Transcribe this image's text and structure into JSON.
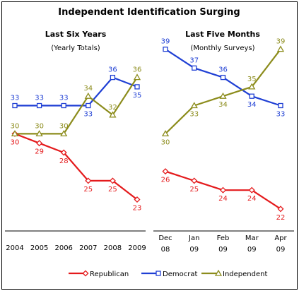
{
  "title": "Independent Identification Surging",
  "chart_data": [
    {
      "type": "line",
      "title": "Last Six Years",
      "subtitle": "(Yearly Totals)",
      "categories": [
        "2004",
        "2005",
        "2006",
        "2007",
        "2008",
        "2009"
      ],
      "ylim": [
        20,
        40
      ],
      "grid": false,
      "series": [
        {
          "name": "Republican",
          "color": "#e41a1c",
          "marker": "diamond",
          "values": [
            30,
            29,
            28,
            25,
            25,
            23
          ],
          "label_pos": [
            "below",
            "below",
            "below",
            "below",
            "below",
            "below"
          ]
        },
        {
          "name": "Democrat",
          "color": "#1f3fd4",
          "marker": "square",
          "values": [
            33,
            33,
            33,
            33,
            36,
            35
          ],
          "label_pos": [
            "above",
            "above",
            "above",
            "below",
            "above",
            "below"
          ]
        },
        {
          "name": "Independent",
          "color": "#8c8c1c",
          "marker": "triangle",
          "values": [
            30,
            30,
            30,
            34,
            32,
            36
          ],
          "label_pos": [
            "above",
            "above",
            "above",
            "above",
            "above",
            "above"
          ]
        }
      ]
    },
    {
      "type": "line",
      "title": "Last Five Months",
      "subtitle": "(Monthly Surveys)",
      "categories": [
        "Dec\n08",
        "Jan\n09",
        "Feb\n09",
        "Mar\n09",
        "Apr\n09"
      ],
      "ylim": [
        20,
        40
      ],
      "grid": false,
      "series": [
        {
          "name": "Republican",
          "color": "#e41a1c",
          "marker": "diamond",
          "values": [
            26,
            25,
            24,
            24,
            22
          ],
          "label_pos": [
            "below",
            "below",
            "below",
            "below",
            "below"
          ]
        },
        {
          "name": "Democrat",
          "color": "#1f3fd4",
          "marker": "square",
          "values": [
            39,
            37,
            36,
            34,
            33
          ],
          "label_pos": [
            "above",
            "above",
            "above",
            "below",
            "below"
          ]
        },
        {
          "name": "Independent",
          "color": "#8c8c1c",
          "marker": "triangle",
          "values": [
            30,
            33,
            34,
            35,
            39
          ],
          "label_pos": [
            "below",
            "below",
            "below",
            "above",
            "above"
          ]
        }
      ]
    }
  ],
  "legend": [
    {
      "name": "Republican",
      "color": "#e41a1c",
      "marker": "diamond"
    },
    {
      "name": "Democrat",
      "color": "#1f3fd4",
      "marker": "square"
    },
    {
      "name": "Independent",
      "color": "#8c8c1c",
      "marker": "triangle"
    }
  ]
}
